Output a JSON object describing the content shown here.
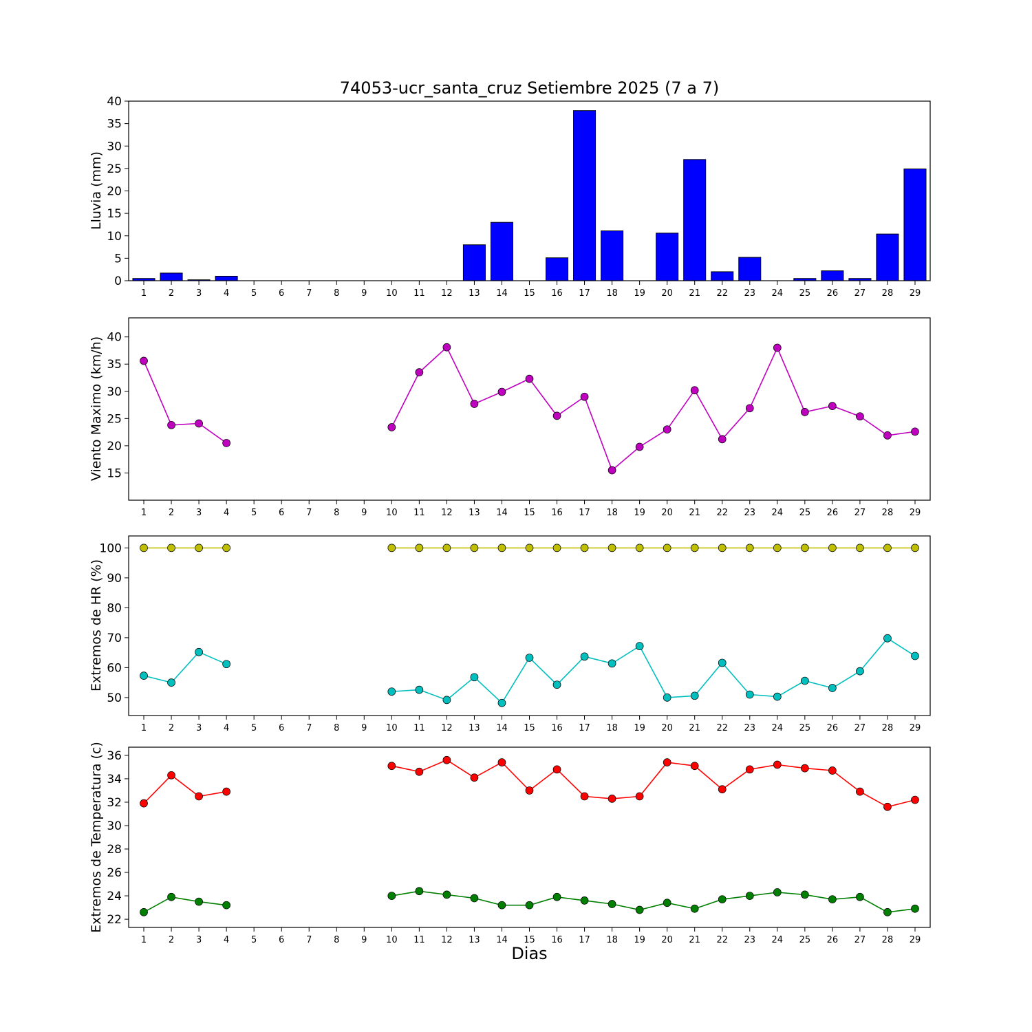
{
  "title": "74053-ucr_santa_cruz Setiembre 2025  (7 a 7)",
  "xlabel": "Dias",
  "days": [
    1,
    2,
    3,
    4,
    5,
    6,
    7,
    8,
    9,
    10,
    11,
    12,
    13,
    14,
    15,
    16,
    17,
    18,
    19,
    20,
    21,
    22,
    23,
    24,
    25,
    26,
    27,
    28,
    29
  ],
  "chart_data": [
    {
      "type": "bar",
      "name": "lluvia",
      "ylabel": "Lluvia (mm)",
      "title": "",
      "bar_color": "#0000ff",
      "bar_edge": "#000000",
      "ylim": [
        0,
        40
      ],
      "yticks": [
        0,
        5,
        10,
        15,
        20,
        25,
        30,
        35,
        40
      ],
      "values": [
        0.5,
        1.7,
        0.2,
        1.0,
        0,
        0,
        0,
        0,
        0,
        0,
        0,
        0,
        8.0,
        13.0,
        0,
        5.1,
        37.9,
        11.1,
        0,
        10.6,
        27.0,
        2.0,
        5.2,
        0,
        0.5,
        2.2,
        0.5,
        10.4,
        24.9
      ]
    },
    {
      "type": "line",
      "name": "viento",
      "ylabel": "Viento Maximo (km/h)",
      "title": "",
      "ylim": [
        10,
        43.5
      ],
      "yticks": [
        15,
        20,
        25,
        30,
        35,
        40
      ],
      "series": [
        {
          "name": "viento-maximo",
          "color": "#bf00bf",
          "values": [
            35.6,
            23.8,
            24.1,
            20.5,
            null,
            null,
            null,
            null,
            null,
            23.4,
            33.5,
            38.1,
            27.7,
            29.9,
            32.3,
            25.5,
            29.0,
            15.5,
            19.8,
            23.0,
            30.2,
            21.2,
            26.9,
            38.0,
            26.2,
            27.3,
            25.4,
            21.9,
            22.6
          ]
        }
      ]
    },
    {
      "type": "line",
      "name": "hr",
      "ylabel": "Extremos de HR (%)",
      "title": "",
      "ylim": [
        44,
        104
      ],
      "yticks": [
        50,
        60,
        70,
        80,
        90,
        100
      ],
      "series": [
        {
          "name": "hr-maxima",
          "color": "#bfbf00",
          "values": [
            100,
            100,
            100,
            100,
            null,
            null,
            null,
            null,
            null,
            100,
            100,
            100,
            100,
            100,
            100,
            100,
            100,
            100,
            100,
            100,
            100,
            100,
            100,
            100,
            100,
            100,
            100,
            100,
            100
          ]
        },
        {
          "name": "hr-minima",
          "color": "#00bfbf",
          "values": [
            57.3,
            55.0,
            65.2,
            61.2,
            null,
            null,
            null,
            null,
            null,
            52.0,
            52.6,
            49.2,
            56.8,
            48.2,
            63.3,
            54.3,
            63.7,
            61.4,
            67.2,
            50.0,
            50.6,
            61.6,
            51.0,
            50.3,
            55.6,
            53.2,
            58.8,
            69.8,
            63.9
          ]
        }
      ]
    },
    {
      "type": "line",
      "name": "temperatura",
      "ylabel": "Extremos de Temperatura (c)",
      "title": "",
      "ylim": [
        21.3,
        36.7
      ],
      "yticks": [
        22,
        24,
        26,
        28,
        30,
        32,
        34,
        36
      ],
      "series": [
        {
          "name": "temperatura-maxima",
          "color": "#ff0000",
          "values": [
            31.9,
            34.3,
            32.5,
            32.9,
            null,
            null,
            null,
            null,
            null,
            35.1,
            34.6,
            35.6,
            34.1,
            35.4,
            33.0,
            34.8,
            32.5,
            32.3,
            32.5,
            35.4,
            35.1,
            33.1,
            34.8,
            35.2,
            34.9,
            34.7,
            32.9,
            31.6,
            32.2
          ]
        },
        {
          "name": "temperatura-minima",
          "color": "#008000",
          "values": [
            22.6,
            23.9,
            23.5,
            23.2,
            null,
            null,
            null,
            null,
            null,
            24.0,
            24.4,
            24.1,
            23.8,
            23.2,
            23.2,
            23.9,
            23.6,
            23.3,
            22.8,
            23.4,
            22.9,
            23.7,
            24.0,
            24.3,
            24.1,
            23.7,
            23.9,
            22.6,
            22.9
          ]
        }
      ]
    }
  ]
}
